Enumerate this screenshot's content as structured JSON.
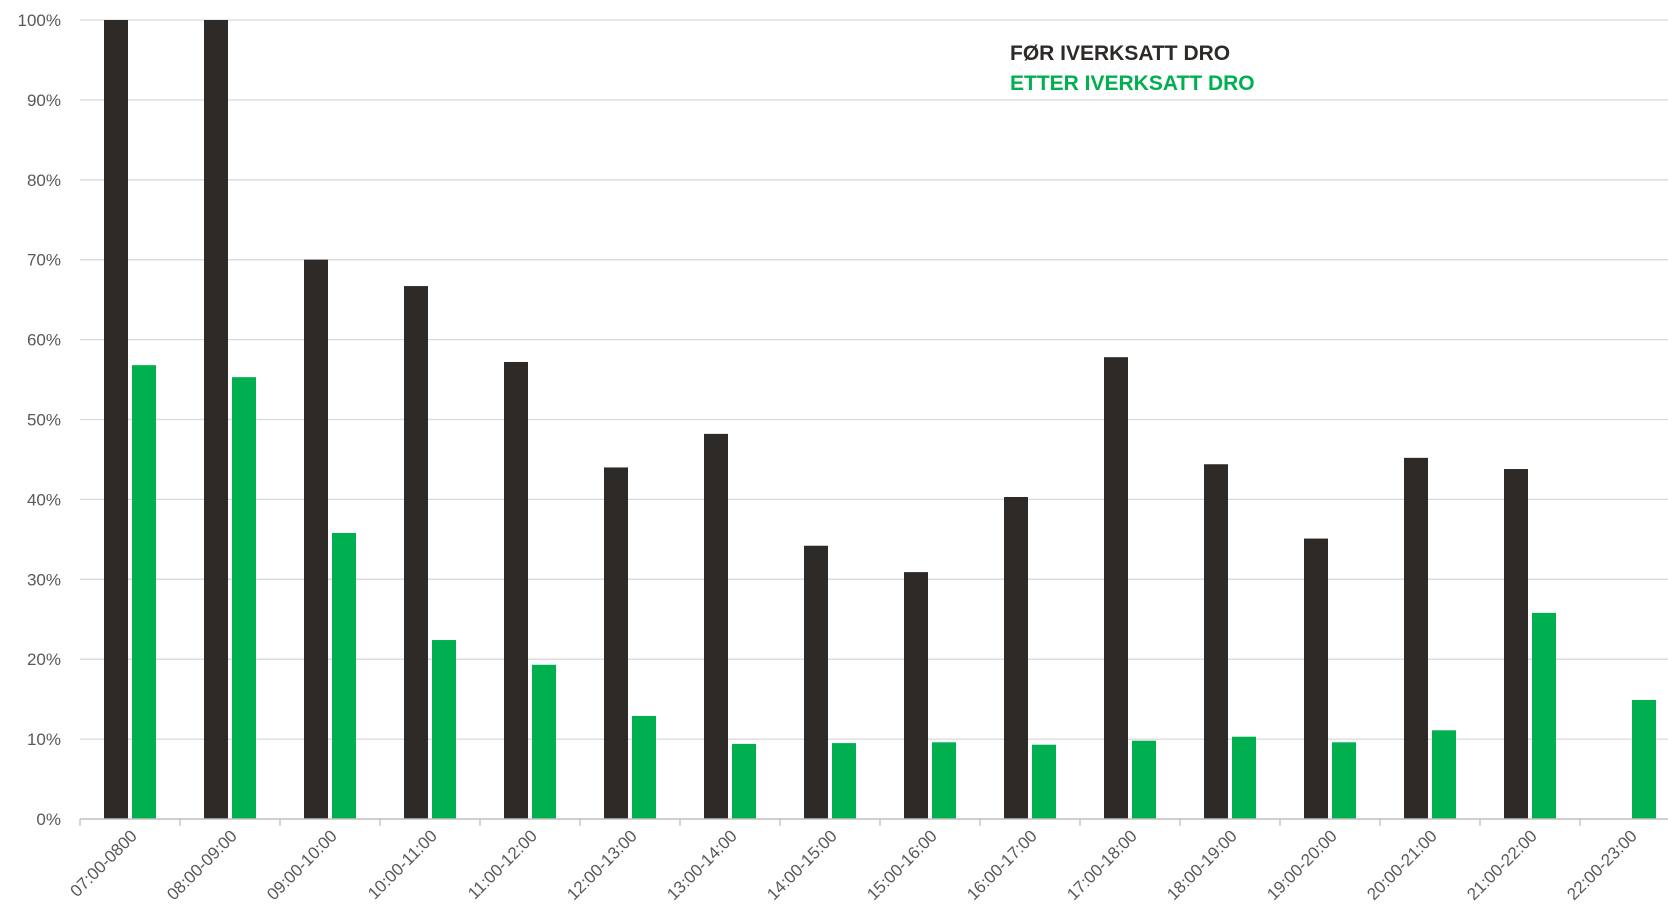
{
  "chart_data": {
    "type": "bar",
    "title": "",
    "xlabel": "",
    "ylabel": "",
    "ylim": [
      0,
      1
    ],
    "y_ticks": [
      "0%",
      "10%",
      "20%",
      "30%",
      "40%",
      "50%",
      "60%",
      "70%",
      "80%",
      "90%",
      "100%"
    ],
    "y_tick_values": [
      0,
      0.1,
      0.2,
      0.3,
      0.4,
      0.5,
      0.6,
      0.7,
      0.8,
      0.9,
      1.0
    ],
    "grid": true,
    "legend_position": "top-right",
    "categories": [
      "07:00-0800",
      "08:00-09:00",
      "09:00-10:00",
      "10:00-11:00",
      "11:00-12:00",
      "12:00-13:00",
      "13:00-14:00",
      "14:00-15:00",
      "15:00-16:00",
      "16:00-17:00",
      "17:00-18:00",
      "18:00-19:00",
      "19:00-20:00",
      "20:00-21:00",
      "21:00-22:00",
      "22:00-23:00"
    ],
    "series": [
      {
        "name": "FØR IVERKSATT DRO",
        "color": "#2d2a28",
        "values": [
          1.0,
          1.0,
          0.7,
          0.667,
          0.572,
          0.44,
          0.482,
          0.342,
          0.309,
          0.403,
          0.578,
          0.444,
          0.351,
          0.452,
          0.438,
          null
        ]
      },
      {
        "name": "ETTER IVERKSATT DRO",
        "color": "#00b050",
        "values": [
          0.568,
          0.553,
          0.358,
          0.224,
          0.193,
          0.129,
          0.094,
          0.095,
          0.096,
          0.093,
          0.098,
          0.103,
          0.096,
          0.111,
          0.258,
          0.149
        ]
      }
    ]
  }
}
